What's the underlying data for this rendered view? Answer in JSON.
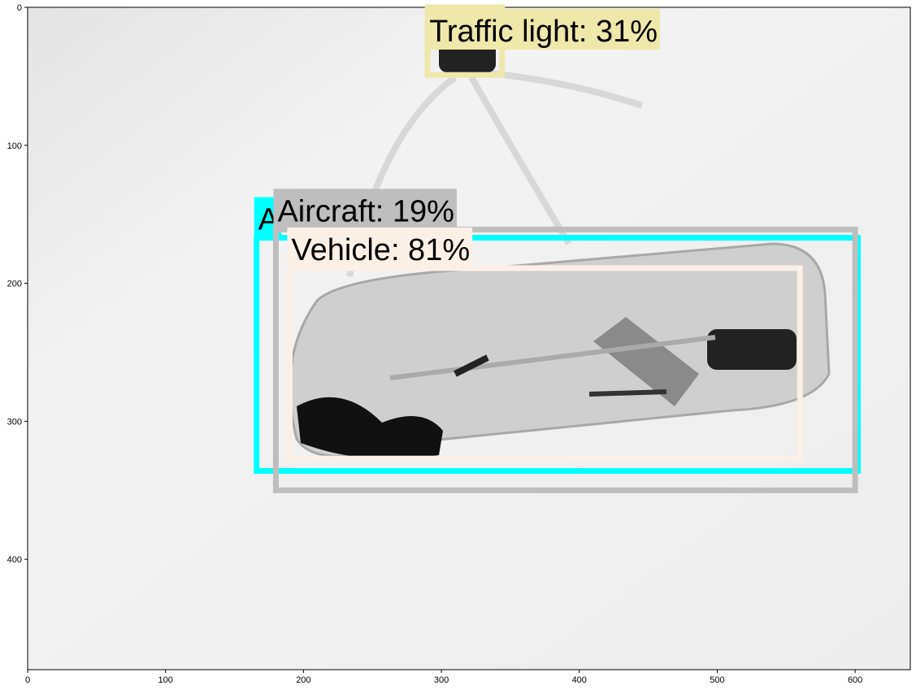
{
  "chart_data": {
    "type": "detections",
    "xlim": [
      0,
      640
    ],
    "ylim": [
      480,
      0
    ],
    "xticks": [
      0,
      100,
      200,
      300,
      400,
      500,
      600
    ],
    "yticks": [
      0,
      100,
      200,
      300,
      400
    ],
    "boxes": [
      {
        "label": "A",
        "color": "#00ffff",
        "xmin": 166,
        "ymin": 167,
        "xmax": 602,
        "ymax": 336
      },
      {
        "label": "Aircraft: 19%",
        "color": "#bebebe",
        "xmin": 180,
        "ymin": 161,
        "xmax": 600,
        "ymax": 350
      },
      {
        "label": "Vehicle: 81%",
        "color": "#faf0e6",
        "xmin": 190,
        "ymin": 189,
        "xmax": 560,
        "ymax": 327
      },
      {
        "label": "Traffic light: 31%",
        "color": "#eee8aa",
        "xmin": 290,
        "ymin": 0,
        "xmax": 344,
        "ymax": 49
      }
    ]
  }
}
